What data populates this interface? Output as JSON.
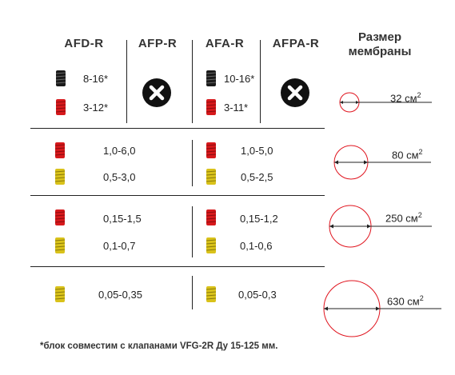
{
  "headers": {
    "afd": "AFD-R",
    "afp": "AFP-R",
    "afa": "AFA-R",
    "afpa": "AFPA-R",
    "membrane": [
      "Размер",
      "мембраны"
    ]
  },
  "rows": {
    "r1": {
      "afd_black": "8-16*",
      "afd_red": "3-12*",
      "afa_black": "10-16*",
      "afa_red": "3-11*",
      "area": "32 см"
    },
    "r2": {
      "afd_red": "1,0-6,0",
      "afd_yellow": "0,5-3,0",
      "afa_red": "1,0-5,0",
      "afa_yellow": "0,5-2,5",
      "area": "80 см"
    },
    "r3": {
      "afd_red": "0,15-1,5",
      "afd_yellow": "0,1-0,7",
      "afa_red": "0,15-1,2",
      "afa_yellow": "0,1-0,6",
      "area": "250 см"
    },
    "r4": {
      "afd_yellow": "0,05-0,35",
      "afa_yellow": "0,05-0,3",
      "area": "630 см"
    }
  },
  "superscript": "2",
  "footnote": "*блок совместим с клапанами VFG-2R Ду 15-125 мм.",
  "colors": {
    "black_spring": "#1a1a1a",
    "red_spring": "#d7191c",
    "yellow_spring": "#d9c21a",
    "circle": "#e0141e",
    "line": "#222222"
  }
}
